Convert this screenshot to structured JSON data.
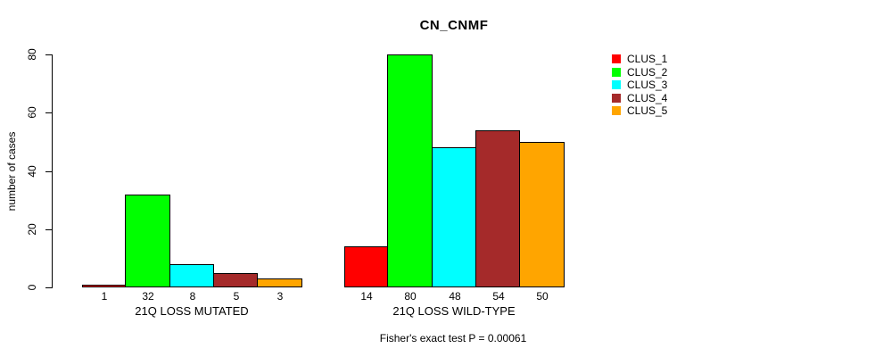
{
  "chart_data": {
    "type": "bar",
    "title": "CN_CNMF",
    "ylabel": "number of cases",
    "xlabel": "",
    "ylim": [
      0,
      80
    ],
    "yticks": [
      0,
      20,
      40,
      60,
      80
    ],
    "categories": [
      "21Q LOSS MUTATED",
      "21Q LOSS WILD-TYPE"
    ],
    "series": [
      {
        "name": "CLUS_1",
        "color": "#FF0000",
        "values": [
          1,
          14
        ]
      },
      {
        "name": "CLUS_2",
        "color": "#00FF00",
        "values": [
          32,
          80
        ]
      },
      {
        "name": "CLUS_3",
        "color": "#00FFFF",
        "values": [
          8,
          48
        ]
      },
      {
        "name": "CLUS_4",
        "color": "#A52A2A",
        "values": [
          5,
          54
        ]
      },
      {
        "name": "CLUS_5",
        "color": "#FFA500",
        "values": [
          3,
          50
        ]
      }
    ],
    "show_value_labels": true,
    "legend_position": "right",
    "grid": false,
    "bar_border_color": "#000000",
    "annotation": "Fisher's exact test P = 0.00061"
  }
}
